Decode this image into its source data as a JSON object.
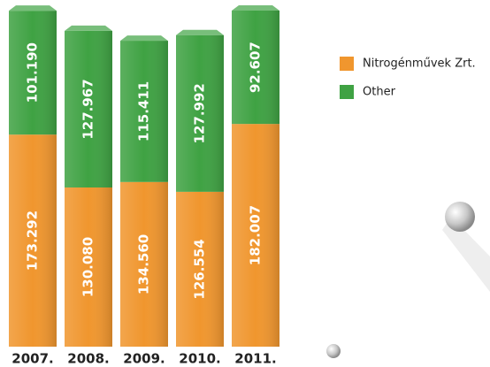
{
  "chart_data": {
    "type": "bar",
    "stacked": true,
    "categories": [
      "2007.",
      "2008.",
      "2009.",
      "2010.",
      "2011."
    ],
    "series": [
      {
        "name": "Nitrogénművek Zrt.",
        "color": "#f0962e",
        "values": [
          173292,
          130080,
          134560,
          126554,
          182007
        ],
        "value_labels": [
          "173.292",
          "130.080",
          "134.560",
          "126.554",
          "182.007"
        ]
      },
      {
        "name": "Other",
        "color": "#3fa243",
        "values": [
          101190,
          127967,
          115411,
          127992,
          92607
        ],
        "value_labels": [
          "101.190",
          "127.967",
          "115.411",
          "127.992",
          "92.607"
        ]
      }
    ]
  }
}
